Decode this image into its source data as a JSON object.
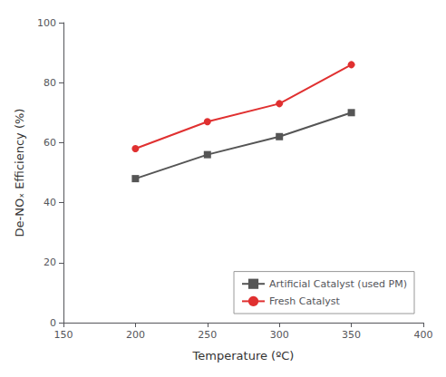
{
  "chart_data": {
    "type": "line",
    "x": [
      200,
      250,
      300,
      350
    ],
    "series": [
      {
        "name": "Artificial Catalyst (used PM)",
        "color": "#555555",
        "marker": "square",
        "values": [
          48,
          56,
          62,
          70
        ]
      },
      {
        "name": "Fresh Catalyst",
        "color": "#e03030",
        "marker": "circle",
        "values": [
          58,
          67,
          73,
          86
        ]
      }
    ],
    "xlabel": "Temperature (ºC)",
    "ylabel": "De-NOₓ Efficiency (%)",
    "xlim": [
      150,
      400
    ],
    "ylim": [
      0,
      100
    ],
    "xticks": [
      150,
      200,
      250,
      300,
      350,
      400
    ],
    "yticks": [
      0,
      20,
      40,
      60,
      80,
      100
    ],
    "legend": "lower right",
    "grid": false
  }
}
